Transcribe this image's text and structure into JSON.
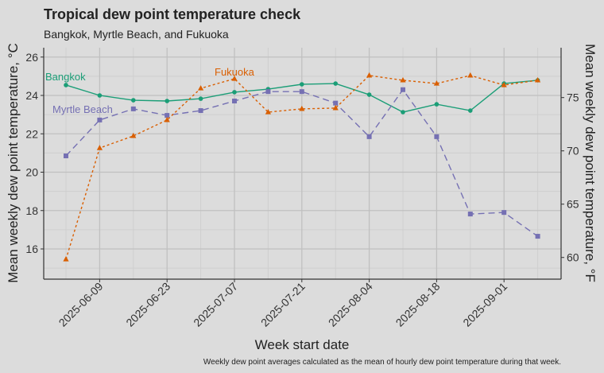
{
  "chart_data": {
    "type": "line",
    "title": "Tropical dew point temperature check",
    "subtitle": "Bangkok, Myrtle Beach, and Fukuoka",
    "xlabel": "Week start date",
    "ylabel": "Mean weekly dew point temperature, °C",
    "ylabel_right": "Mean weekly dew point temperature, °F",
    "caption": "Weekly dew point averages calculated as the mean of hourly dew point temperature during that week.",
    "x": [
      "2025-06-02",
      "2025-06-09",
      "2025-06-16",
      "2025-06-23",
      "2025-06-30",
      "2025-07-07",
      "2025-07-14",
      "2025-07-21",
      "2025-07-28",
      "2025-08-04",
      "2025-08-11",
      "2025-08-18",
      "2025-08-25",
      "2025-09-01",
      "2025-09-08"
    ],
    "x_ticks": [
      "2025-06-09",
      "2025-06-23",
      "2025-07-07",
      "2025-07-21",
      "2025-08-04",
      "2025-08-18",
      "2025-09-01"
    ],
    "y_ticks": [
      16,
      18,
      20,
      22,
      24,
      26
    ],
    "y_right_ticks": [
      60,
      65,
      70,
      75
    ],
    "ylim": [
      14.6,
      26.5
    ],
    "grid": true,
    "series": [
      {
        "name": "Bangkok",
        "color": "#1b9e77",
        "dash": "",
        "marker": "circle",
        "values": [
          24.54,
          24.0,
          23.75,
          23.71,
          23.83,
          24.17,
          24.33,
          24.58,
          24.62,
          24.04,
          23.13,
          23.54,
          23.21,
          24.62,
          24.79
        ]
      },
      {
        "name": "Myrtle Beach",
        "color": "#7570b3",
        "dash": "8,5",
        "marker": "square",
        "values": [
          20.85,
          22.72,
          23.3,
          22.96,
          23.21,
          23.71,
          24.2,
          24.2,
          23.6,
          21.85,
          24.3,
          21.85,
          17.82,
          17.9,
          16.66
        ]
      },
      {
        "name": "Fukuoka",
        "color": "#d95f02",
        "dash": "3,3",
        "marker": "triangle",
        "values": [
          15.46,
          21.26,
          21.89,
          22.72,
          24.37,
          24.87,
          23.13,
          23.3,
          23.34,
          25.04,
          24.79,
          24.62,
          25.04,
          24.54,
          24.79
        ]
      }
    ]
  }
}
